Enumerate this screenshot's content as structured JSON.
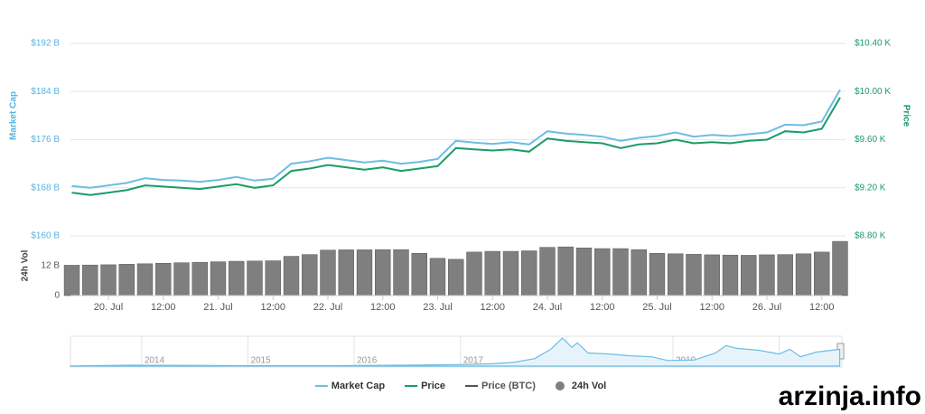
{
  "chart_data": [
    {
      "type": "line",
      "y_label": "Market Cap",
      "y2_label": "Price",
      "categories": [
        null,
        null,
        "20. Jul",
        null,
        null,
        "12:00",
        null,
        null,
        "21. Jul",
        null,
        null,
        "12:00",
        null,
        null,
        "22. Jul",
        null,
        null,
        "12:00",
        null,
        null,
        "23. Jul",
        null,
        null,
        "12:00",
        null,
        null,
        "24. Jul",
        null,
        null,
        "12:00",
        null,
        null,
        "25. Jul",
        null,
        null,
        "12:00",
        null,
        null,
        "26. Jul",
        null,
        null,
        "12:00",
        null
      ],
      "series": [
        {
          "name": "Market Cap",
          "color": "#6cbde6",
          "values": [
            168.3,
            168.0,
            168.4,
            168.8,
            169.6,
            169.3,
            169.2,
            169.0,
            169.3,
            169.8,
            169.2,
            169.5,
            172.0,
            172.4,
            173.0,
            172.6,
            172.2,
            172.5,
            172.0,
            172.3,
            172.8,
            175.8,
            175.5,
            175.3,
            175.6,
            175.2,
            177.4,
            177.0,
            176.8,
            176.5,
            175.8,
            176.3,
            176.6,
            177.2,
            176.5,
            176.8,
            176.6,
            176.9,
            177.2,
            178.5,
            178.4,
            179.0,
            184.3
          ]
        },
        {
          "name": "Price",
          "color": "#1a9b6a",
          "axis": "y2",
          "values": [
            9.16,
            9.14,
            9.16,
            9.18,
            9.22,
            9.21,
            9.2,
            9.19,
            9.21,
            9.23,
            9.2,
            9.22,
            9.34,
            9.36,
            9.39,
            9.37,
            9.35,
            9.37,
            9.34,
            9.36,
            9.38,
            9.53,
            9.52,
            9.51,
            9.52,
            9.5,
            9.61,
            9.59,
            9.58,
            9.57,
            9.53,
            9.56,
            9.57,
            9.6,
            9.57,
            9.58,
            9.57,
            9.59,
            9.6,
            9.67,
            9.66,
            9.69,
            9.95
          ]
        },
        {
          "name": "Price (BTC)",
          "color": "#555555",
          "visible": false
        }
      ],
      "ylim": [
        160,
        192
      ],
      "yticks": [
        {
          "value": 160,
          "label": "$160 B"
        },
        {
          "value": 168,
          "label": "$168 B"
        },
        {
          "value": 176,
          "label": "$176 B"
        },
        {
          "value": 184,
          "label": "$184 B"
        },
        {
          "value": 192,
          "label": "$192 B"
        }
      ],
      "y2lim": [
        8.8,
        10.4
      ],
      "y2ticks": [
        {
          "value": 8.8,
          "label": "$8.80 K"
        },
        {
          "value": 9.2,
          "label": "$9.20 K"
        },
        {
          "value": 9.6,
          "label": "$9.60 K"
        },
        {
          "value": 10.0,
          "label": "$10.00 K"
        },
        {
          "value": 10.4,
          "label": "$10.40 K"
        }
      ],
      "grid": true
    },
    {
      "type": "bar",
      "y_label": "24h Vol",
      "series": [
        {
          "name": "24h Vol",
          "color": "#7f7f7f",
          "values": [
            12.2,
            12.3,
            12.4,
            12.6,
            12.8,
            13.0,
            13.2,
            13.4,
            13.6,
            13.8,
            13.9,
            14.0,
            15.8,
            16.5,
            18.3,
            18.4,
            18.4,
            18.5,
            18.5,
            17.0,
            15.0,
            14.6,
            17.5,
            17.8,
            17.8,
            18.0,
            19.4,
            19.6,
            19.2,
            18.9,
            18.9,
            18.5,
            17.0,
            16.8,
            16.6,
            16.4,
            16.3,
            16.2,
            16.4,
            16.5,
            16.8,
            17.5,
            21.8
          ]
        }
      ],
      "ylim": [
        0,
        24
      ],
      "yticks": [
        0,
        {
          "value": 12,
          "label": "12 B"
        }
      ]
    },
    {
      "type": "area",
      "x": [
        2013.33,
        2013.9,
        2014.0,
        2014.5,
        2015.0,
        2015.5,
        2016.0,
        2016.5,
        2017.0,
        2017.3,
        2017.5,
        2017.7,
        2017.85,
        2017.96,
        2018.05,
        2018.1,
        2018.2,
        2018.4,
        2018.6,
        2018.8,
        2018.95,
        2019.2,
        2019.4,
        2019.5,
        2019.6,
        2019.8,
        2020.0,
        2020.1,
        2020.2,
        2020.35,
        2020.5,
        2020.57
      ],
      "values": [
        1.5,
        10,
        9,
        8,
        4,
        3.5,
        6,
        10,
        16,
        25,
        40,
        80,
        180,
        300,
        200,
        250,
        140,
        130,
        110,
        100,
        60,
        65,
        140,
        220,
        190,
        170,
        130,
        180,
        100,
        150,
        170,
        180
      ],
      "color": "#6cbde6",
      "xlim": [
        2013.33,
        2020.59
      ],
      "xticks": [
        2014,
        2015,
        2016,
        2017,
        2018,
        2019,
        2020
      ]
    }
  ],
  "watermark": "arzinja.info"
}
